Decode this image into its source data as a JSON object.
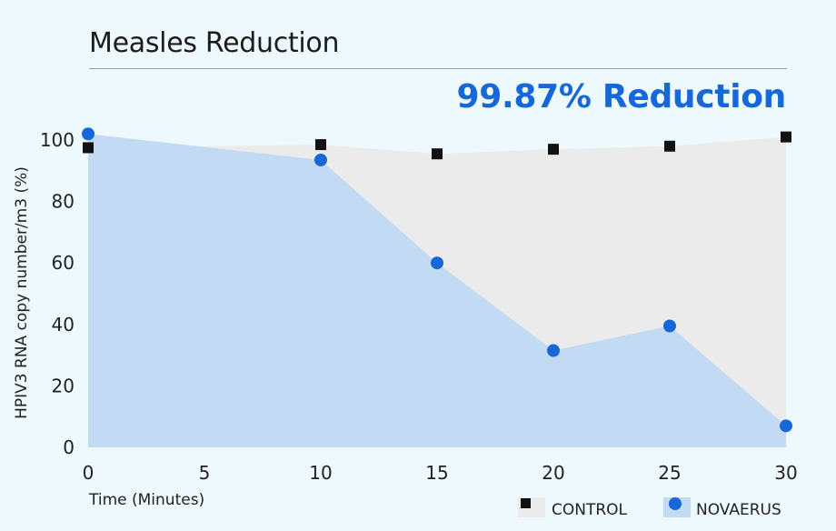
{
  "title": "Measles Reduction",
  "headline": "99.87% Reduction",
  "chart_data": {
    "type": "area",
    "xlabel": "Time (Minutes)",
    "ylabel": "HPIV3 RNA copy number/m3 (%)",
    "x_ticks": [
      0,
      5,
      10,
      15,
      20,
      25,
      30
    ],
    "y_ticks": [
      0,
      20,
      40,
      60,
      80,
      100
    ],
    "xlim": [
      0,
      30
    ],
    "ylim": [
      0,
      100
    ],
    "grid": false,
    "legend_position": "bottom-right",
    "series": [
      {
        "name": "CONTROL",
        "marker": "square",
        "color": "#111111",
        "fill": "#ebebeb",
        "x": [
          0,
          10,
          15,
          20,
          25,
          30
        ],
        "y": [
          97.5,
          98.5,
          95.5,
          97,
          98,
          101
        ]
      },
      {
        "name": "NOVAERUS",
        "marker": "circle",
        "color": "#1667d8",
        "fill": "#c2daf3",
        "x": [
          0,
          10,
          15,
          20,
          25,
          30
        ],
        "y": [
          102,
          93.5,
          60,
          31.5,
          39.5,
          7
        ]
      }
    ]
  }
}
